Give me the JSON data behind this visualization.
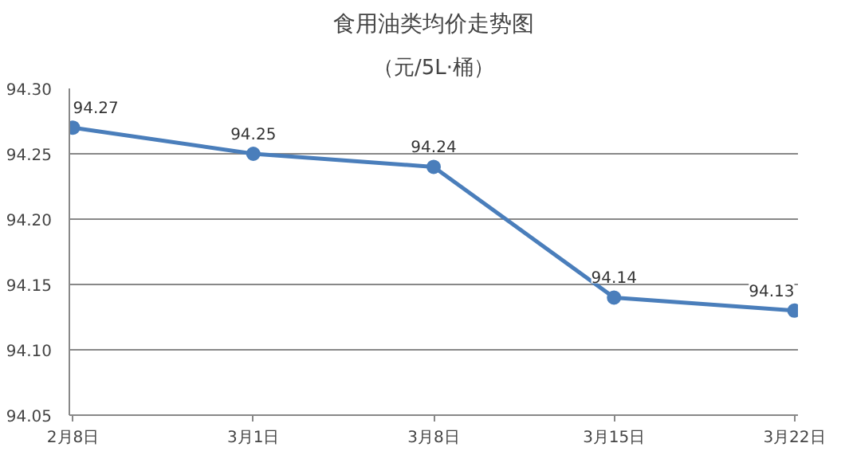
{
  "chart_data": {
    "type": "line",
    "title": "食用油类均价走势图",
    "subtitle": "（元/5L·桶）",
    "categories": [
      "2月8日",
      "3月1日",
      "3月8日",
      "3月15日",
      "3月22日"
    ],
    "series": [
      {
        "color": "#4a7ebb",
        "values": [
          94.27,
          94.25,
          94.24,
          94.14,
          94.13
        ]
      }
    ],
    "ylim": [
      94.05,
      94.3
    ],
    "yticks": [
      {
        "value": 94.05,
        "label": "94.05"
      },
      {
        "value": 94.1,
        "label": "94.10"
      },
      {
        "value": 94.15,
        "label": "94.15"
      },
      {
        "value": 94.2,
        "label": "94.20"
      },
      {
        "value": 94.25,
        "label": "94.25"
      },
      {
        "value": 94.3,
        "label": "94.30"
      }
    ],
    "grid": "y",
    "marker": "circle",
    "line_style": "solid",
    "data_labels": true
  }
}
